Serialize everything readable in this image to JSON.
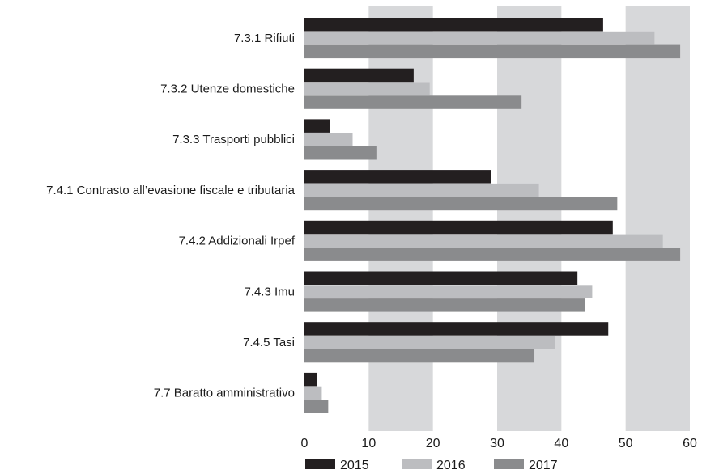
{
  "chart_data": {
    "type": "bar",
    "orientation": "horizontal",
    "categories": [
      "7.3.1 Rifiuti",
      "7.3.2 Utenze domestiche",
      "7.3.3 Trasporti pubblici",
      "7.4.1 Contrasto all’evasione fiscale e tributaria",
      "7.4.2 Addizionali Irpef",
      "7.4.3 Imu",
      "7.4.5 Tasi",
      "7.7 Baratto amministrativo"
    ],
    "series": [
      {
        "name": "2015",
        "color": "#231f20",
        "values": [
          46.5,
          17.0,
          4.0,
          29.0,
          48.0,
          42.5,
          47.3,
          2.0
        ]
      },
      {
        "name": "2016",
        "color": "#bcbdc0",
        "values": [
          54.5,
          19.5,
          7.5,
          36.5,
          55.8,
          44.8,
          39.0,
          2.7
        ]
      },
      {
        "name": "2017",
        "color": "#8a8b8d",
        "values": [
          58.5,
          33.8,
          11.2,
          48.7,
          58.5,
          43.7,
          35.8,
          3.7
        ]
      }
    ],
    "x_ticks": [
      "0",
      "10",
      "20",
      "30",
      "40",
      "50",
      "60"
    ],
    "xlim": [
      0,
      60
    ],
    "grid": "alternating vertical bands",
    "legend_position": "bottom",
    "title": "",
    "xlabel": "",
    "ylabel": ""
  },
  "colors": {
    "band": "#d7d8da",
    "background": "#ffffff"
  }
}
